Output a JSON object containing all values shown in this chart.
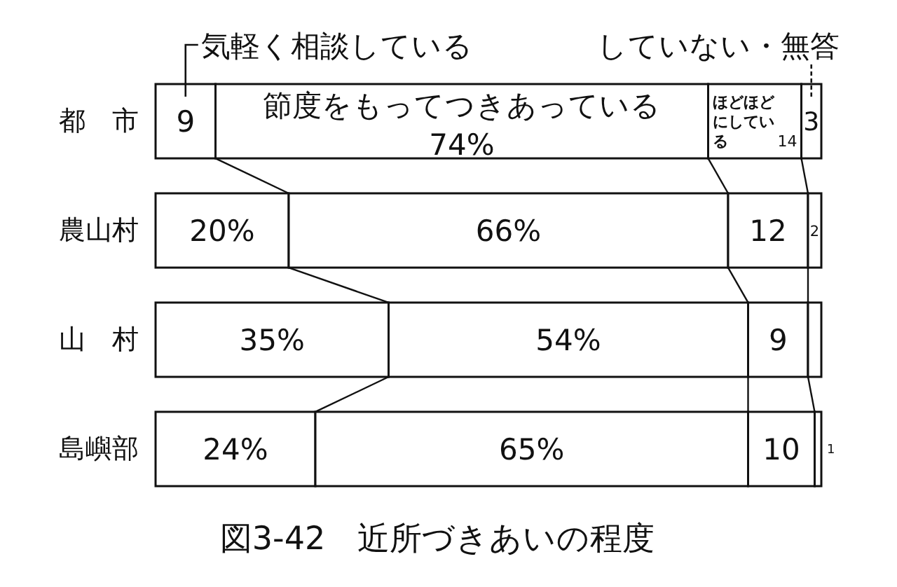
{
  "chart_data": {
    "type": "bar",
    "orientation": "horizontal",
    "stacked": true,
    "title": "図3-42　近所づきあいの程度",
    "categories": [
      "都　市",
      "農山村",
      "山　村",
      "島嶼部"
    ],
    "xlim": [
      0,
      100
    ],
    "tick_labels": "y",
    "series": [
      {
        "name": "気軽く相談している",
        "color": "#ffffff",
        "values": [
          9,
          20,
          35,
          24
        ],
        "value_labels": [
          "9",
          "20%",
          "35%",
          "24%"
        ]
      },
      {
        "name": "節度をもってつきあっている",
        "color": "#ffffff",
        "values": [
          74,
          66,
          54,
          65
        ],
        "value_labels": [
          "74%",
          "66%",
          "54%",
          "65%"
        ]
      },
      {
        "name": "ほどほどにしている",
        "color": "#ffffff",
        "values": [
          14,
          12,
          9,
          10
        ],
        "value_labels": [
          "14",
          "12",
          "9",
          "10"
        ]
      },
      {
        "name": "していない・無答",
        "color": "#ffffff",
        "values": [
          3,
          2,
          2,
          1
        ],
        "value_labels": [
          "3",
          "2",
          null,
          "1"
        ]
      }
    ]
  }
}
